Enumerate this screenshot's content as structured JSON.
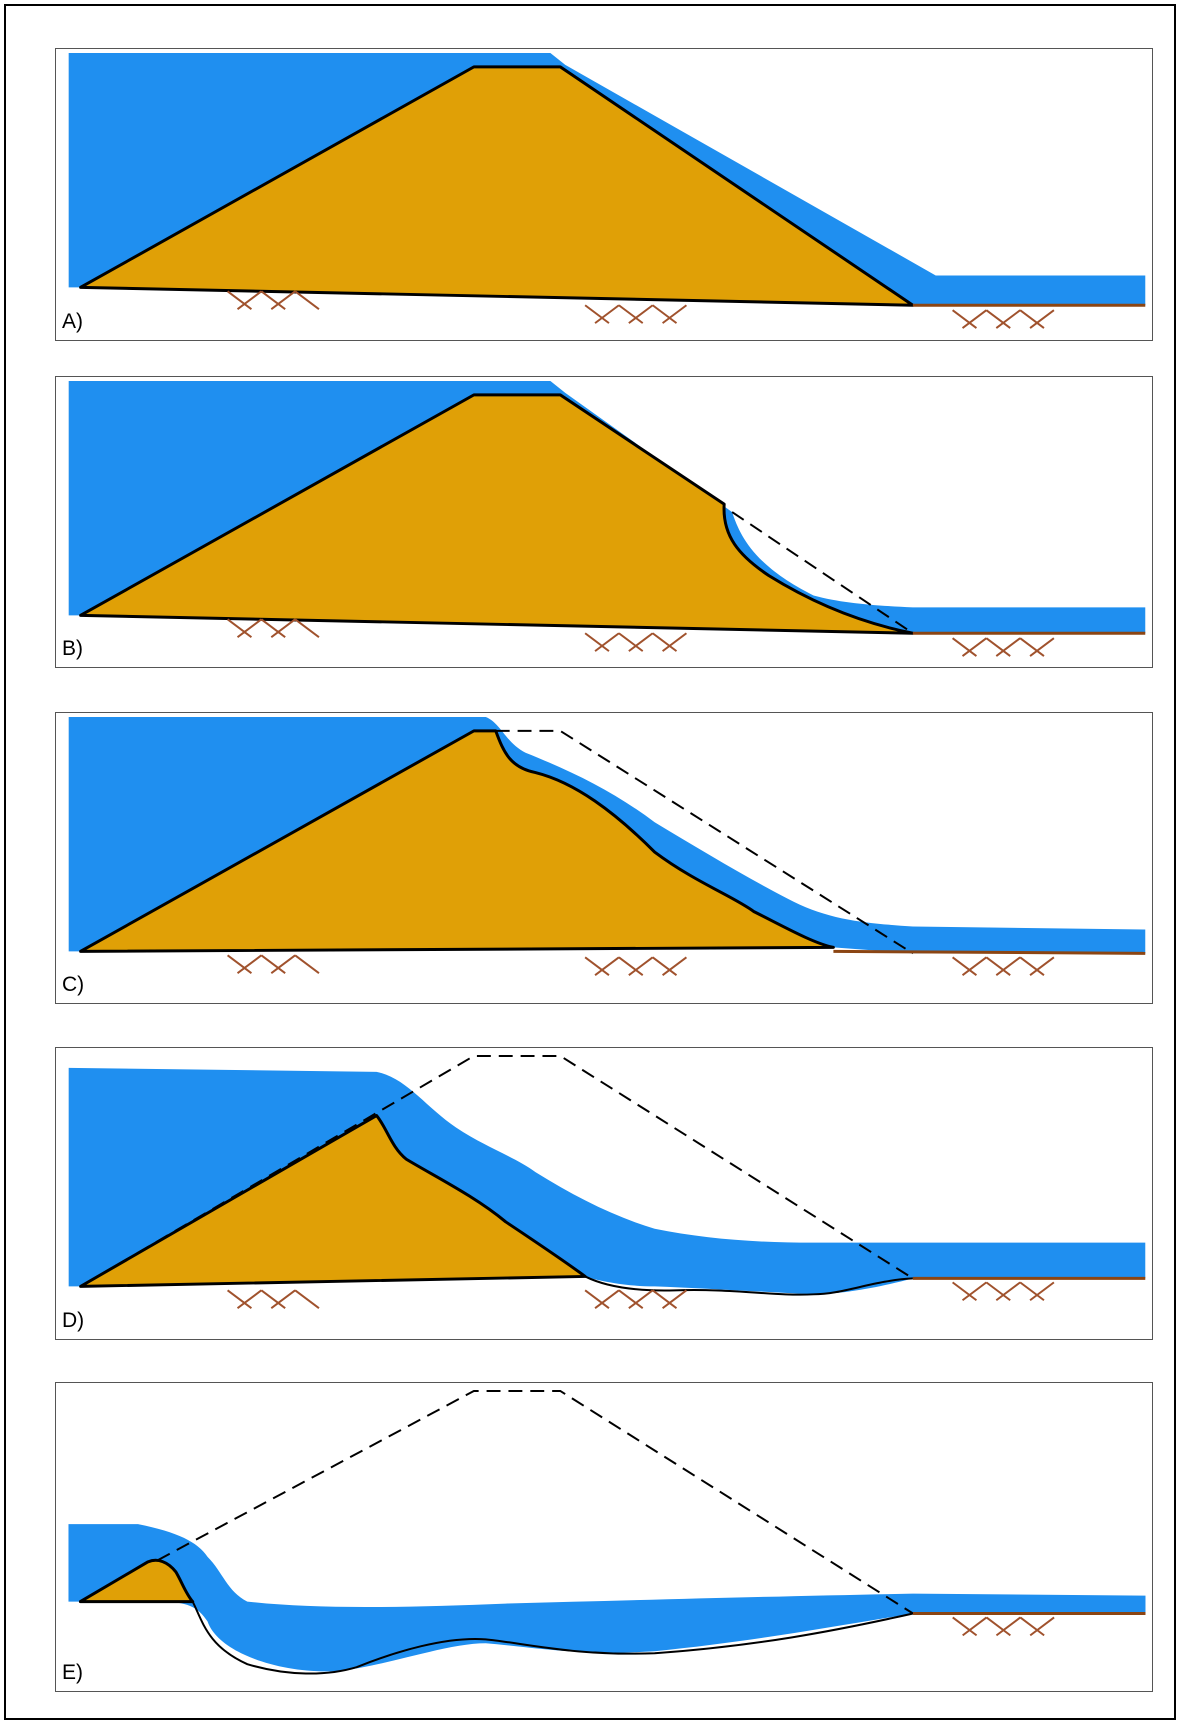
{
  "colors": {
    "water": "#1f8ff0",
    "dam": "#e0a006",
    "ground": "#8b4513",
    "outline": "#000000",
    "frame": "#555555"
  },
  "panels": [
    {
      "label": "A)"
    },
    {
      "label": "B)"
    },
    {
      "label": "C)"
    },
    {
      "label": "D)"
    },
    {
      "label": "E)"
    }
  ]
}
